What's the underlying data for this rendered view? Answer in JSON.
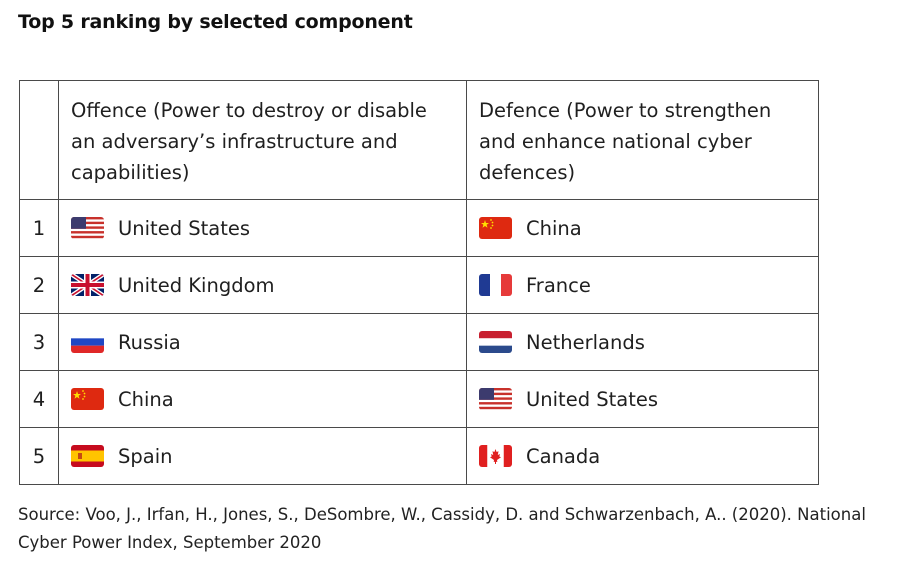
{
  "title": "Top 5 ranking by selected component",
  "table": {
    "headers": {
      "rank": "",
      "offence": "Offence (Power to destroy or disable an adversary’s infrastructure and capabilities)",
      "defence": "Defence (Power to strengthen and enhance national cyber defences)"
    },
    "rows": [
      {
        "rank": "1",
        "offence": "United States",
        "offence_flag": "us-flag-icon",
        "defence": "China",
        "defence_flag": "china-flag-icon"
      },
      {
        "rank": "2",
        "offence": "United Kingdom",
        "offence_flag": "uk-flag-icon",
        "defence": "France",
        "defence_flag": "france-flag-icon"
      },
      {
        "rank": "3",
        "offence": "Russia",
        "offence_flag": "russia-flag-icon",
        "defence": "Netherlands",
        "defence_flag": "netherlands-flag-icon"
      },
      {
        "rank": "4",
        "offence": "China",
        "offence_flag": "china-flag-icon",
        "defence": "United States",
        "defence_flag": "us-flag-icon"
      },
      {
        "rank": "5",
        "offence": "Spain",
        "offence_flag": "spain-flag-icon",
        "defence": "Canada",
        "defence_flag": "canada-flag-icon"
      }
    ]
  },
  "source": "Source: Voo, J., Irfan, H., Jones, S., DeSombre, W., Cassidy, D. and Schwarzenbach, A.. (2020). National Cyber Power Index, September 2020",
  "colors": {
    "border": "#4a4a4a",
    "text": "#1f1f1f"
  }
}
